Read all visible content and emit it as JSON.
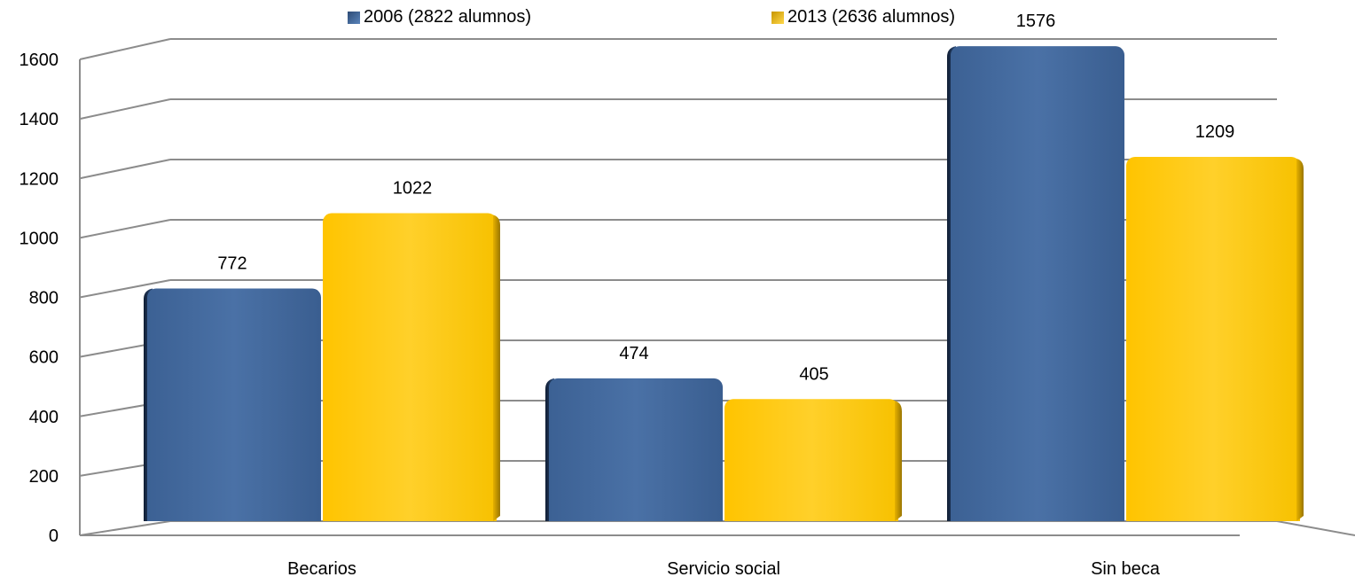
{
  "chart_data": {
    "type": "bar",
    "categories": [
      "Becarios",
      "Servicio social",
      "Sin beca"
    ],
    "series": [
      {
        "name": "2006 (2822 alumnos)",
        "values": [
          772,
          474,
          1576
        ],
        "color": "#41679a"
      },
      {
        "name": "2013 (2636 alumnos)",
        "values": [
          1022,
          405,
          1209
        ],
        "color": "#fdc90a"
      }
    ],
    "ylim": [
      0,
      1600
    ],
    "yticks": [
      "0",
      "200",
      "400",
      "600",
      "800",
      "1000",
      "1200",
      "1400",
      "1600"
    ],
    "legend_position": "top",
    "grid": true,
    "style": "3d-clustered-column"
  }
}
